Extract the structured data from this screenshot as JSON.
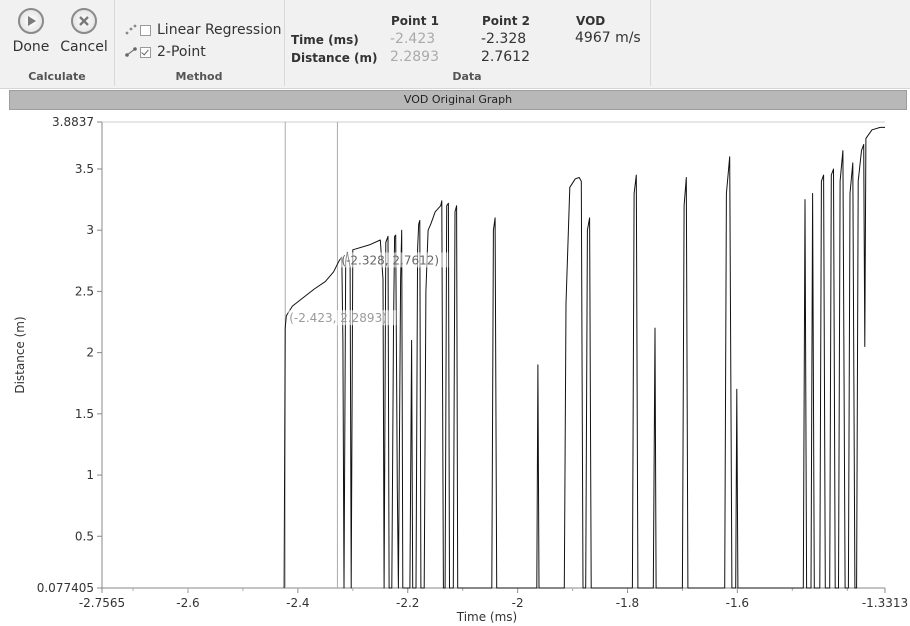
{
  "ribbon": {
    "calculate": {
      "label": "Calculate",
      "done_label": "Done",
      "cancel_label": "Cancel"
    },
    "method": {
      "label": "Method",
      "options": [
        {
          "label": "Linear Regression",
          "checked": false
        },
        {
          "label": "2-Point",
          "checked": true
        }
      ]
    },
    "data": {
      "label": "Data",
      "row_labels": [
        "Time (ms)",
        "Distance (m)"
      ],
      "point1": {
        "header": "Point 1",
        "time": "-2.423",
        "distance": "2.2893"
      },
      "point2": {
        "header": "Point 2",
        "time": "-2.328",
        "distance": "2.7612"
      },
      "vod": {
        "header": "VOD",
        "value": "4967 m/s"
      }
    }
  },
  "graph_title": "VOD Original Graph",
  "chart_data": {
    "type": "line",
    "xlabel": "Time (ms)",
    "ylabel": "Distance (m)",
    "xlim": [
      -2.7565,
      -1.3313
    ],
    "ylim": [
      0.077405,
      3.8837
    ],
    "x_ticks": [
      {
        "value": -2.7565,
        "label": "-2.7565"
      },
      {
        "value": -2.6,
        "label": "-2.6"
      },
      {
        "value": -2.4,
        "label": "-2.4"
      },
      {
        "value": -2.2,
        "label": "-2.2"
      },
      {
        "value": -2.0,
        "label": "-2"
      },
      {
        "value": -1.8,
        "label": "-1.8"
      },
      {
        "value": -1.6,
        "label": "-1.6"
      },
      {
        "value": -1.3313,
        "label": "-1.3313"
      }
    ],
    "y_ticks": [
      {
        "value": 0.077405,
        "label": "0.077405"
      },
      {
        "value": 0.5,
        "label": "0.5"
      },
      {
        "value": 1.0,
        "label": "1"
      },
      {
        "value": 1.5,
        "label": "1.5"
      },
      {
        "value": 2.0,
        "label": "2"
      },
      {
        "value": 2.5,
        "label": "2.5"
      },
      {
        "value": 3.0,
        "label": "3"
      },
      {
        "value": 3.5,
        "label": "3.5"
      },
      {
        "value": 3.8837,
        "label": "3.8837"
      }
    ],
    "cursor_lines_x": [
      -2.423,
      -2.328
    ],
    "annotations": [
      {
        "x": -2.423,
        "y": 2.2893,
        "text": "(-2.423, 2.2893)"
      },
      {
        "x": -2.328,
        "y": 2.7612,
        "text": "(-2.328, 2.7612)"
      }
    ],
    "series": [
      {
        "points": [
          [
            -2.425,
            0.077
          ],
          [
            -2.423,
            2.2
          ],
          [
            -2.421,
            2.3
          ],
          [
            -2.41,
            2.38
          ],
          [
            -2.39,
            2.45
          ],
          [
            -2.37,
            2.52
          ],
          [
            -2.35,
            2.58
          ],
          [
            -2.335,
            2.66
          ],
          [
            -2.325,
            2.75
          ],
          [
            -2.32,
            2.78
          ],
          [
            -2.318,
            2.1
          ],
          [
            -2.316,
            0.077
          ],
          [
            -2.313,
            2.75
          ],
          [
            -2.31,
            2.82
          ],
          [
            -2.305,
            2.7
          ],
          [
            -2.303,
            0.077
          ],
          [
            -2.3,
            2.84
          ],
          [
            -2.27,
            2.88
          ],
          [
            -2.25,
            2.92
          ],
          [
            -2.245,
            2.6
          ],
          [
            -2.243,
            0.077
          ],
          [
            -2.24,
            2.9
          ],
          [
            -2.236,
            2.95
          ],
          [
            -2.234,
            0.077
          ],
          [
            -2.229,
            0.077
          ],
          [
            -2.226,
            2.2
          ],
          [
            -2.224,
            2.95
          ],
          [
            -2.222,
            2.96
          ],
          [
            -2.219,
            0.9
          ],
          [
            -2.217,
            0.077
          ],
          [
            -2.213,
            2.6
          ],
          [
            -2.211,
            3.0
          ],
          [
            -2.209,
            0.077
          ],
          [
            -2.196,
            0.077
          ],
          [
            -2.193,
            2.1
          ],
          [
            -2.191,
            0.077
          ],
          [
            -2.185,
            0.077
          ],
          [
            -2.182,
            2.85
          ],
          [
            -2.18,
            3.05
          ],
          [
            -2.178,
            3.08
          ],
          [
            -2.176,
            0.077
          ],
          [
            -2.17,
            0.077
          ],
          [
            -2.167,
            2.5
          ],
          [
            -2.163,
            3.0
          ],
          [
            -2.158,
            3.05
          ],
          [
            -2.15,
            3.15
          ],
          [
            -2.14,
            3.2
          ],
          [
            -2.138,
            3.24
          ],
          [
            -2.135,
            0.077
          ],
          [
            -2.132,
            0.077
          ],
          [
            -2.129,
            3.2
          ],
          [
            -2.126,
            3.22
          ],
          [
            -2.124,
            0.077
          ],
          [
            -2.117,
            0.077
          ],
          [
            -2.114,
            3.15
          ],
          [
            -2.111,
            3.2
          ],
          [
            -2.109,
            0.077
          ],
          [
            -2.047,
            0.077
          ],
          [
            -2.044,
            3.0
          ],
          [
            -2.041,
            3.1
          ],
          [
            -2.038,
            0.077
          ],
          [
            -1.965,
            0.077
          ],
          [
            -1.963,
            1.9
          ],
          [
            -1.961,
            0.077
          ],
          [
            -1.915,
            0.077
          ],
          [
            -1.912,
            2.4
          ],
          [
            -1.905,
            3.35
          ],
          [
            -1.895,
            3.42
          ],
          [
            -1.888,
            3.43
          ],
          [
            -1.884,
            3.4
          ],
          [
            -1.881,
            0.077
          ],
          [
            -1.876,
            0.077
          ],
          [
            -1.873,
            3.0
          ],
          [
            -1.869,
            3.1
          ],
          [
            -1.866,
            0.077
          ],
          [
            -1.791,
            0.077
          ],
          [
            -1.788,
            3.3
          ],
          [
            -1.784,
            3.45
          ],
          [
            -1.781,
            0.077
          ],
          [
            -1.753,
            0.077
          ],
          [
            -1.75,
            2.2
          ],
          [
            -1.748,
            0.077
          ],
          [
            -1.7,
            0.077
          ],
          [
            -1.697,
            3.2
          ],
          [
            -1.693,
            3.43
          ],
          [
            -1.69,
            0.077
          ],
          [
            -1.623,
            0.077
          ],
          [
            -1.62,
            3.3
          ],
          [
            -1.614,
            3.6
          ],
          [
            -1.61,
            0.077
          ],
          [
            -1.603,
            0.077
          ],
          [
            -1.601,
            1.7
          ],
          [
            -1.599,
            0.077
          ],
          [
            -1.48,
            0.077
          ],
          [
            -1.477,
            3.25
          ],
          [
            -1.474,
            0.077
          ],
          [
            -1.466,
            0.077
          ],
          [
            -1.463,
            3.3
          ],
          [
            -1.46,
            0.077
          ],
          [
            -1.45,
            0.077
          ],
          [
            -1.447,
            3.4
          ],
          [
            -1.443,
            3.45
          ],
          [
            -1.44,
            0.077
          ],
          [
            -1.432,
            0.077
          ],
          [
            -1.429,
            3.45
          ],
          [
            -1.425,
            3.5
          ],
          [
            -1.422,
            0.077
          ],
          [
            -1.416,
            0.077
          ],
          [
            -1.413,
            3.4
          ],
          [
            -1.408,
            3.65
          ],
          [
            -1.404,
            0.077
          ],
          [
            -1.398,
            0.077
          ],
          [
            -1.395,
            3.3
          ],
          [
            -1.39,
            3.55
          ],
          [
            -1.386,
            0.077
          ],
          [
            -1.383,
            0.077
          ],
          [
            -1.38,
            3.4
          ],
          [
            -1.374,
            3.65
          ],
          [
            -1.37,
            3.7
          ],
          [
            -1.368,
            2.05
          ],
          [
            -1.366,
            3.75
          ],
          [
            -1.355,
            3.82
          ],
          [
            -1.34,
            3.84
          ],
          [
            -1.3313,
            3.84
          ]
        ]
      }
    ]
  }
}
